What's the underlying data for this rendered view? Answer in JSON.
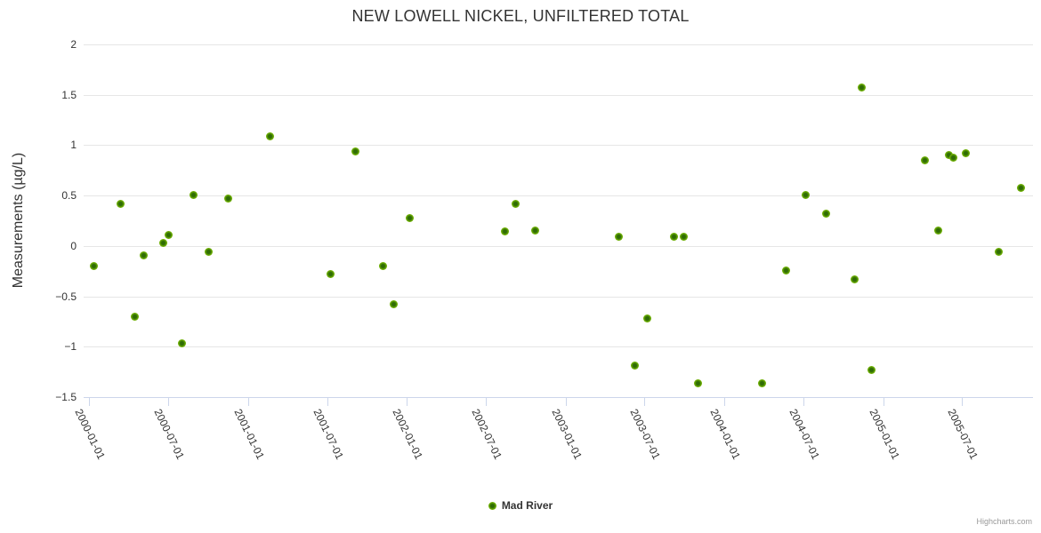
{
  "title": "NEW LOWELL NICKEL, UNFILTERED TOTAL",
  "y_axis": {
    "title": "Measurements (µg/L)",
    "max": 2,
    "min": -1.5,
    "tick_step": 0.5,
    "tick_labels": [
      "2",
      "1.5",
      "1",
      "0.5",
      "0",
      "−0.5",
      "−1",
      "−1.5"
    ]
  },
  "x_axis": {
    "tick_labels": [
      "2000-01-01",
      "2000-07-01",
      "2001-01-01",
      "2001-07-01",
      "2002-01-01",
      "2002-07-01",
      "2003-01-01",
      "2003-07-01",
      "2004-01-01",
      "2004-07-01",
      "2005-01-01",
      "2005-07-01"
    ]
  },
  "legend": {
    "series_label": "Mad River",
    "marker_icon": "green-circle-marker"
  },
  "credit_label": "Highcharts.com",
  "colors": {
    "marker_outer": "#77b509",
    "marker_inner": "#2f6c05",
    "grid_line": "#e6e6e6",
    "axis_line": "#ccd6eb",
    "title_text": "#333333",
    "axis_label_text": "#333333",
    "credit_text": "#999999"
  },
  "chart_data": {
    "type": "scatter",
    "title": "NEW LOWELL NICKEL, UNFILTERED TOTAL",
    "xlabel": "",
    "ylabel": "Measurements (µg/L)",
    "x_axis_type": "datetime",
    "xlim": [
      "1999-12-19",
      "2005-12-11"
    ],
    "ylim": [
      -1.5,
      2
    ],
    "grid": "horizontal",
    "legend_position": "bottom-center",
    "series": [
      {
        "name": "Mad River",
        "points": [
          {
            "date": "2000-01-11",
            "value": -0.2
          },
          {
            "date": "2000-03-12",
            "value": 0.42
          },
          {
            "date": "2000-04-15",
            "value": -0.7
          },
          {
            "date": "2000-05-06",
            "value": -0.09
          },
          {
            "date": "2000-06-20",
            "value": 0.03
          },
          {
            "date": "2000-07-02",
            "value": 0.11
          },
          {
            "date": "2000-08-02",
            "value": -0.97
          },
          {
            "date": "2000-08-28",
            "value": 0.51
          },
          {
            "date": "2000-10-01",
            "value": -0.06
          },
          {
            "date": "2000-11-15",
            "value": 0.47
          },
          {
            "date": "2001-02-19",
            "value": 1.09
          },
          {
            "date": "2001-07-08",
            "value": -0.28
          },
          {
            "date": "2001-09-04",
            "value": 0.94
          },
          {
            "date": "2001-11-06",
            "value": -0.2
          },
          {
            "date": "2001-12-02",
            "value": -0.58
          },
          {
            "date": "2002-01-07",
            "value": 0.28
          },
          {
            "date": "2002-08-15",
            "value": 0.14
          },
          {
            "date": "2002-09-08",
            "value": 0.42
          },
          {
            "date": "2002-10-23",
            "value": 0.15
          },
          {
            "date": "2003-05-04",
            "value": 0.09
          },
          {
            "date": "2003-06-10",
            "value": -1.19
          },
          {
            "date": "2003-07-07",
            "value": -0.72
          },
          {
            "date": "2003-09-07",
            "value": 0.09
          },
          {
            "date": "2003-09-30",
            "value": 0.09
          },
          {
            "date": "2003-11-02",
            "value": -1.36
          },
          {
            "date": "2004-03-28",
            "value": -1.36
          },
          {
            "date": "2004-05-23",
            "value": -0.24
          },
          {
            "date": "2004-07-07",
            "value": 0.51
          },
          {
            "date": "2004-08-23",
            "value": 0.32
          },
          {
            "date": "2004-10-26",
            "value": -0.33
          },
          {
            "date": "2004-11-13",
            "value": 1.57
          },
          {
            "date": "2004-12-04",
            "value": -1.23
          },
          {
            "date": "2005-04-06",
            "value": 0.85
          },
          {
            "date": "2005-05-08",
            "value": 0.15
          },
          {
            "date": "2005-06-01",
            "value": 0.9
          },
          {
            "date": "2005-06-11",
            "value": 0.88
          },
          {
            "date": "2005-07-10",
            "value": 0.92
          },
          {
            "date": "2005-09-24",
            "value": -0.06
          },
          {
            "date": "2005-11-13",
            "value": 0.58
          }
        ]
      }
    ]
  }
}
